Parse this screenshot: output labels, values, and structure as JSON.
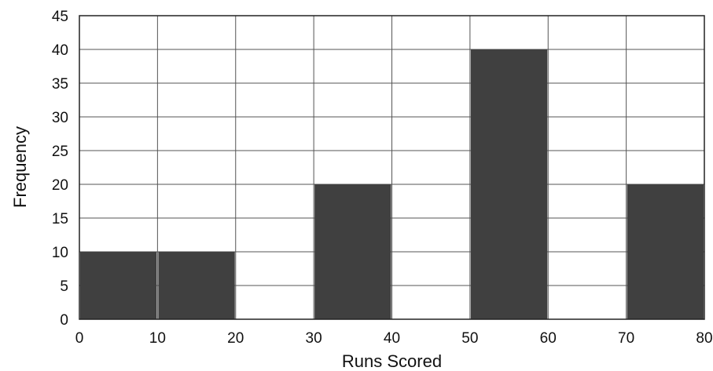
{
  "chart_data": {
    "type": "bar",
    "title": "",
    "xlabel": "Runs Scored",
    "ylabel": "Frequency",
    "bins": [
      {
        "start": 0,
        "end": 10,
        "value": 10
      },
      {
        "start": 10,
        "end": 20,
        "value": 10
      },
      {
        "start": 20,
        "end": 30,
        "value": 0
      },
      {
        "start": 30,
        "end": 40,
        "value": 20
      },
      {
        "start": 40,
        "end": 50,
        "value": 0
      },
      {
        "start": 50,
        "end": 60,
        "value": 40
      },
      {
        "start": 60,
        "end": 70,
        "value": 0
      },
      {
        "start": 70,
        "end": 80,
        "value": 20
      }
    ],
    "xlim": [
      0,
      80
    ],
    "ylim": [
      0,
      45
    ],
    "xticks": [
      "0",
      "10",
      "20",
      "30",
      "40",
      "50",
      "60",
      "70",
      "80"
    ],
    "yticks": [
      "0",
      "5",
      "10",
      "15",
      "20",
      "25",
      "30",
      "35",
      "40",
      "45"
    ],
    "grid": true,
    "bar_color": "#404040",
    "grid_color": "#555555"
  }
}
